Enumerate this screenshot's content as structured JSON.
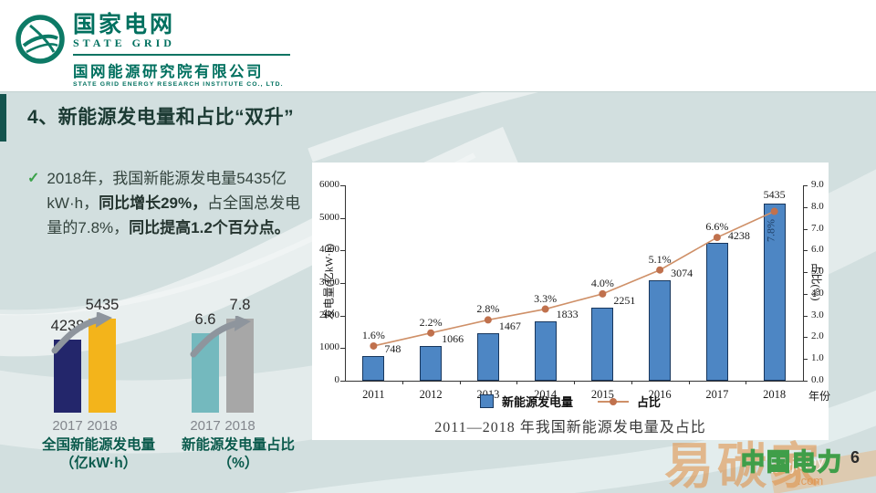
{
  "header": {
    "brand_cn": "国家电网",
    "brand_en": "STATE GRID",
    "org_cn": "国网能源研究院有限公司",
    "org_en": "STATE GRID ENERGY RESEARCH INSTITUTE CO., LTD."
  },
  "slide": {
    "title": "4、新能源发电量和占比“双升”",
    "bullet": {
      "check": "✓",
      "segments": [
        {
          "text": "2018年，我国新能源发电量5435亿kW·h，"
        },
        {
          "text": "同比增长29%，"
        },
        {
          "text": "占全国总发电量的7.8%，"
        },
        {
          "text": "同比提高1.2个百分点。"
        }
      ]
    },
    "page_number": "6"
  },
  "mini_charts": [
    {
      "caption_line1": "全国新能源发电量",
      "caption_line2": "（亿kW·h）",
      "max": 5435,
      "bars": [
        {
          "year": "2017",
          "label": "4238",
          "value": 4238,
          "color": "#23266b"
        },
        {
          "year": "2018",
          "label": "5435",
          "value": 5435,
          "color": "#f3b41b"
        }
      ]
    },
    {
      "caption_line1": "新能源发电量占比",
      "caption_line2": "（%）",
      "max": 7.8,
      "bars": [
        {
          "year": "2017",
          "label": "6.6",
          "value": 6.6,
          "color": "#74b9be"
        },
        {
          "year": "2018",
          "label": "7.8",
          "value": 7.8,
          "color": "#a7a7a7"
        }
      ]
    }
  ],
  "chart_data": {
    "type": "bar",
    "subtype": "bar+line dual axis",
    "categories": [
      "2011",
      "2012",
      "2013",
      "2014",
      "2015",
      "2016",
      "2017",
      "2018"
    ],
    "series": [
      {
        "name": "新能源发电量",
        "type": "bar",
        "axis": "left",
        "color": "#4d86c4",
        "values": [
          748,
          1066,
          1467,
          1833,
          2251,
          3074,
          4238,
          5435
        ]
      },
      {
        "name": "占比",
        "type": "line",
        "axis": "right",
        "color": "#cf9068",
        "values": [
          1.6,
          2.2,
          2.8,
          3.3,
          4.0,
          5.1,
          6.6,
          7.8
        ]
      }
    ],
    "left_axis": {
      "label": "发电量(亿kW·h)",
      "min": 0,
      "max": 6000,
      "step": 1000
    },
    "right_axis": {
      "label": "占比(%)",
      "min": 0,
      "max": 9,
      "step": 1,
      "decimals": 1
    },
    "x_axis_label": "年份",
    "caption": "2011—2018 年我国新能源发电量及占比",
    "grid": false,
    "legend_position": "bottom"
  },
  "watermarks": {
    "stamp": "易碳家",
    "brand": "中国电力",
    "domain": "tanjiaoyi",
    "domain_suffix": ".com"
  }
}
